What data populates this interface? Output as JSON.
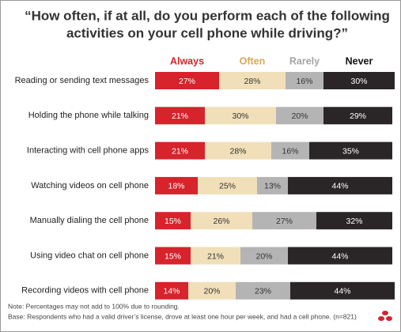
{
  "chart_data": {
    "type": "stacked-bar-horizontal",
    "title": [
      "“How often, if at all, do you perform each of the following",
      "activities on your cell phone while driving?”"
    ],
    "categories": [
      "Reading or sending text messages",
      "Holding the phone while talking",
      "Interacting with cell phone apps",
      "Watching videos on cell phone",
      "Manually dialing the cell phone",
      "Using video chat on cell phone",
      "Recording videos with cell phone"
    ],
    "series": [
      {
        "name": "Always",
        "color": "#d6232c",
        "legend_color": "#d6232c",
        "text_color": "#ffffff",
        "values": [
          27,
          21,
          21,
          18,
          15,
          15,
          14
        ],
        "value_labels": [
          "27%",
          "21%",
          "21%",
          "18%",
          "15%",
          "15%",
          "14%"
        ]
      },
      {
        "name": "Often",
        "color": "#f1dfb9",
        "legend_color": "#d8a757",
        "text_color": "#333333",
        "values": [
          28,
          30,
          28,
          25,
          26,
          21,
          20
        ],
        "value_labels": [
          "28%",
          "30%",
          "28%",
          "25%",
          "26%",
          "21%",
          "20%"
        ]
      },
      {
        "name": "Rarely",
        "color": "#b5b4b4",
        "legend_color": "#a3a3a3",
        "text_color": "#333333",
        "values": [
          16,
          20,
          16,
          13,
          27,
          20,
          23
        ],
        "value_labels": [
          "16%",
          "20%",
          "16%",
          "13%",
          "27%",
          "20%",
          "23%"
        ]
      },
      {
        "name": "Never",
        "color": "#2a2526",
        "legend_color": "#111111",
        "text_color": "#ffffff",
        "values": [
          30,
          29,
          35,
          44,
          32,
          44,
          44
        ],
        "value_labels": [
          "30%",
          "29%",
          "35%",
          "44%",
          "32%",
          "44%",
          "44%"
        ]
      }
    ],
    "notes": [
      "Note:  Percentages may not add to 100% due to rounding.",
      "Base:  Respondents who had a valid driver’s license, drove at least one hour per week, and had a cell phone.  (n=821)"
    ]
  }
}
